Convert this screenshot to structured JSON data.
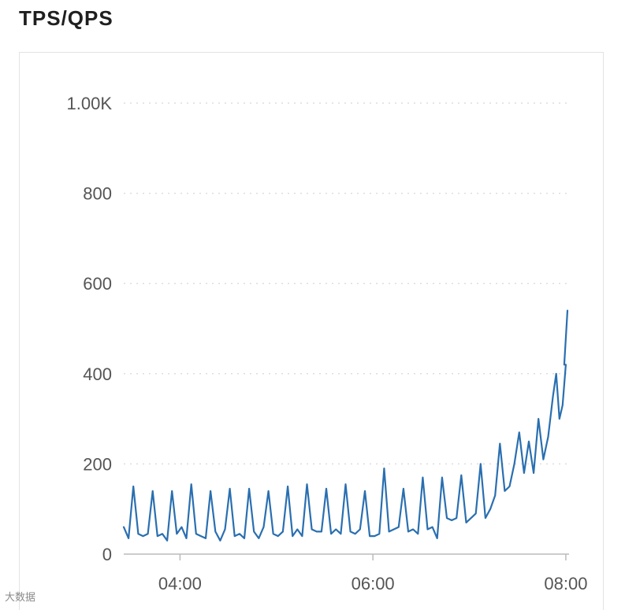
{
  "panel": {
    "title": "TPS/QPS"
  },
  "watermark": "大数据",
  "colors": {
    "tps": "#2a6fb0",
    "qps": "#2fb388",
    "grid": "#dddddd",
    "axis": "#bbbbbb",
    "text": "#555555"
  },
  "chart_data": {
    "type": "line",
    "title": "TPS/QPS",
    "xlabel": "",
    "ylabel": "",
    "xlim": [
      "03:25",
      "08:02"
    ],
    "ylim": [
      0,
      1000
    ],
    "y_ticks": [
      {
        "value": 0,
        "label": "0"
      },
      {
        "value": 200,
        "label": "200"
      },
      {
        "value": 400,
        "label": "400"
      },
      {
        "value": 600,
        "label": "600"
      },
      {
        "value": 800,
        "label": "800"
      },
      {
        "value": 1000,
        "label": "1.00K"
      }
    ],
    "x_ticks": [
      {
        "value": "04:00",
        "label": "04:00"
      },
      {
        "value": "06:00",
        "label": "06:00"
      },
      {
        "value": "08:00",
        "label": "08:00"
      }
    ],
    "grid": true,
    "legend": "none",
    "series": [
      {
        "color": "#2a6fb0",
        "points": [
          [
            "03:25",
            60
          ],
          [
            "03:28",
            35
          ],
          [
            "03:31",
            150
          ],
          [
            "03:34",
            45
          ],
          [
            "03:37",
            40
          ],
          [
            "03:40",
            45
          ],
          [
            "03:43",
            140
          ],
          [
            "03:46",
            40
          ],
          [
            "03:49",
            45
          ],
          [
            "03:52",
            30
          ],
          [
            "03:55",
            140
          ],
          [
            "03:58",
            45
          ],
          [
            "04:01",
            60
          ],
          [
            "04:04",
            35
          ],
          [
            "04:07",
            155
          ],
          [
            "04:10",
            45
          ],
          [
            "04:13",
            40
          ],
          [
            "04:16",
            35
          ],
          [
            "04:19",
            140
          ],
          [
            "04:22",
            50
          ],
          [
            "04:25",
            30
          ],
          [
            "04:28",
            55
          ],
          [
            "04:31",
            145
          ],
          [
            "04:34",
            40
          ],
          [
            "04:37",
            45
          ],
          [
            "04:40",
            35
          ],
          [
            "04:43",
            145
          ],
          [
            "04:46",
            50
          ],
          [
            "04:49",
            35
          ],
          [
            "04:52",
            60
          ],
          [
            "04:55",
            140
          ],
          [
            "04:58",
            45
          ],
          [
            "05:01",
            40
          ],
          [
            "05:04",
            50
          ],
          [
            "05:07",
            150
          ],
          [
            "05:10",
            40
          ],
          [
            "05:13",
            55
          ],
          [
            "05:16",
            40
          ],
          [
            "05:19",
            155
          ],
          [
            "05:22",
            55
          ],
          [
            "05:25",
            50
          ],
          [
            "05:28",
            50
          ],
          [
            "05:31",
            145
          ],
          [
            "05:34",
            45
          ],
          [
            "05:37",
            55
          ],
          [
            "05:40",
            45
          ],
          [
            "05:43",
            155
          ],
          [
            "05:46",
            50
          ],
          [
            "05:49",
            45
          ],
          [
            "05:52",
            55
          ],
          [
            "05:55",
            140
          ],
          [
            "05:58",
            40
          ],
          [
            "06:01",
            40
          ],
          [
            "06:04",
            45
          ],
          [
            "06:07",
            190
          ],
          [
            "06:10",
            50
          ],
          [
            "06:13",
            55
          ],
          [
            "06:16",
            60
          ],
          [
            "06:19",
            145
          ],
          [
            "06:22",
            50
          ],
          [
            "06:25",
            55
          ],
          [
            "06:28",
            45
          ],
          [
            "06:31",
            170
          ],
          [
            "06:34",
            55
          ],
          [
            "06:37",
            60
          ],
          [
            "06:40",
            35
          ],
          [
            "06:43",
            170
          ],
          [
            "06:46",
            80
          ],
          [
            "06:49",
            75
          ],
          [
            "06:52",
            80
          ],
          [
            "06:55",
            175
          ],
          [
            "06:58",
            70
          ],
          [
            "07:01",
            80
          ],
          [
            "07:04",
            90
          ],
          [
            "07:07",
            200
          ],
          [
            "07:10",
            80
          ],
          [
            "07:13",
            100
          ],
          [
            "07:16",
            130
          ],
          [
            "07:19",
            245
          ],
          [
            "07:22",
            140
          ],
          [
            "07:25",
            150
          ],
          [
            "07:28",
            200
          ],
          [
            "07:31",
            270
          ],
          [
            "07:34",
            180
          ],
          [
            "07:37",
            250
          ],
          [
            "07:40",
            180
          ],
          [
            "07:43",
            300
          ],
          [
            "07:46",
            210
          ],
          [
            "07:49",
            260
          ],
          [
            "07:52",
            350
          ],
          [
            "07:54",
            400
          ],
          [
            "07:56",
            300
          ],
          [
            "07:58",
            330
          ],
          [
            "08:00",
            420
          ],
          [
            "07:59",
            420
          ],
          [
            "07:61",
            540
          ]
        ]
      },
      {
        "color": "#2fb388",
        "points": []
      }
    ]
  }
}
